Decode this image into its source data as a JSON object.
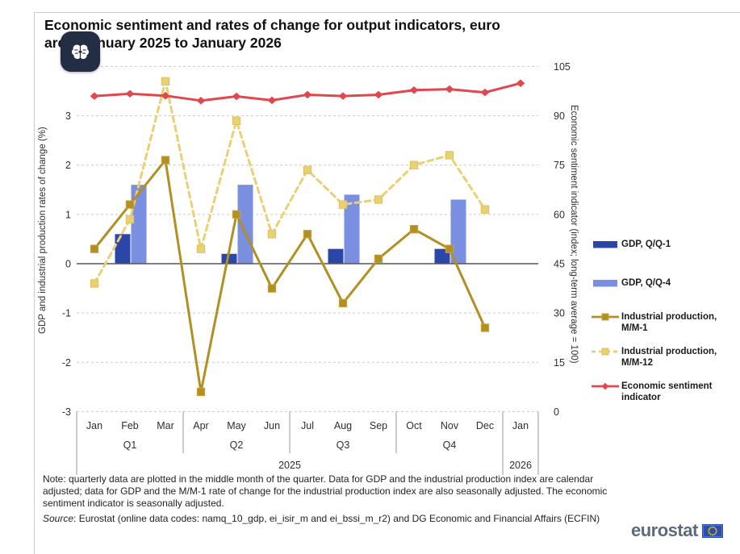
{
  "header": {
    "title_line1": "Economic sentiment and rates of change for output indicators, euro",
    "title_line2": "area, January 2025 to January 2026"
  },
  "overlay_badge": {
    "icon": "brain-icon"
  },
  "chart_data": {
    "type": "combo",
    "months": [
      "Jan",
      "Feb",
      "Mar",
      "Apr",
      "May",
      "Jun",
      "Jul",
      "Aug",
      "Sep",
      "Oct",
      "Nov",
      "Dec",
      "Jan"
    ],
    "quarters": [
      "Q1",
      "Q2",
      "Q3",
      "Q4"
    ],
    "years": [
      "2025",
      "2026"
    ],
    "grid": "horizontal-dashed",
    "legend_position": "right",
    "left_axis": {
      "label": "GDP and industrial production rates of change (%)",
      "range": [
        -3,
        4
      ],
      "ticks": [
        4,
        3,
        2,
        1,
        0,
        -1,
        -2,
        -3
      ]
    },
    "right_axis": {
      "label": "Economic sentiment indicator (index; long-term average = 100)",
      "range": [
        0,
        105
      ],
      "ticks": [
        105,
        90,
        75,
        60,
        45,
        30,
        15,
        0
      ]
    },
    "series": [
      {
        "id": "gdp_qq1",
        "label": "GDP, Q/Q-1",
        "type": "bar",
        "axis": "left",
        "color": "#2B46A8",
        "month_indices": [
          1,
          4,
          7,
          10
        ],
        "values": [
          0.6,
          0.2,
          0.3,
          0.3
        ]
      },
      {
        "id": "gdp_qq4",
        "label": "GDP, Q/Q-4",
        "type": "bar",
        "axis": "left",
        "color": "#7A8FE0",
        "month_indices": [
          1,
          4,
          7,
          10
        ],
        "values": [
          1.6,
          1.6,
          1.4,
          1.3
        ]
      },
      {
        "id": "ip_mm1",
        "label": "Industrial production, M/M-1",
        "type": "line",
        "dash": "solid",
        "marker": "square",
        "marker_edge": "#C9A63B",
        "axis": "left",
        "color": "#B18F22",
        "values": [
          0.3,
          1.2,
          2.1,
          -2.6,
          1.0,
          -0.5,
          0.6,
          -0.8,
          0.1,
          0.7,
          0.3,
          -1.3,
          null
        ]
      },
      {
        "id": "ip_mm12",
        "label": "Industrial production, M/M-12",
        "type": "line",
        "dash": "dashed",
        "marker": "square",
        "marker_edge": "#DFC258",
        "axis": "left",
        "color": "#EAD075",
        "values": [
          -0.4,
          0.9,
          3.7,
          0.3,
          2.9,
          0.6,
          1.9,
          1.2,
          1.3,
          2.0,
          2.2,
          1.1,
          null
        ]
      },
      {
        "id": "esi",
        "label": "Economic sentiment indicator",
        "type": "line",
        "dash": "solid",
        "marker": "diamond",
        "axis": "right",
        "color": "#E0474E",
        "values": [
          96.0,
          96.7,
          96.1,
          94.6,
          95.9,
          94.7,
          96.4,
          96.0,
          96.4,
          97.8,
          98.1,
          97.1,
          99.9
        ]
      }
    ]
  },
  "footer": {
    "note": "Note: quarterly data are plotted in the middle month of the quarter. Data for GDP and the industrial production index are calendar adjusted; data for GDP and the M/M-1 rate of change for the industrial production index are also seasonally adjusted. The economic sentiment indicator is seasonally adjusted.",
    "source_label": "Source",
    "source_text": ": Eurostat (online data codes: namq_10_gdp, ei_isir_m and ei_bssi_m_r2) and DG Economic and Financial Affairs (ECFIN)",
    "logo_text": "eurostat"
  },
  "colors": {
    "panel-border": "#cccccc",
    "gridline": "#c9c9c9",
    "zero-line": "#55565a",
    "band-line": "#999999",
    "tick-text": "#2e2e2e",
    "badge-bg": "#232e44",
    "logo-text": "#5c6b7c",
    "flag-blue": "#2c4fae",
    "flag-inner": "#5b74c4",
    "flag-star": "#f7d117"
  }
}
